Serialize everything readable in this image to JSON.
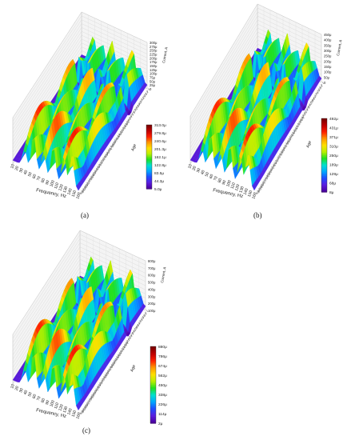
{
  "chart_data": [
    {
      "panel": "(a)",
      "type": "surface3d",
      "xlabel": "Frequency, Hz",
      "ylabel": "Age",
      "zlabel": "Current, A",
      "x_ticks": [
        "10",
        "20",
        "30",
        "40",
        "50",
        "60",
        "70",
        "80",
        "90",
        "100",
        "110",
        "120",
        "130",
        "140",
        "150",
        "160"
      ],
      "y_ticks": [
        "1",
        "3",
        "5",
        "7",
        "9",
        "11",
        "13",
        "15",
        "17",
        "19",
        "21",
        "23",
        "25",
        "27",
        "29",
        "31",
        "33",
        "35",
        "37",
        "39",
        "41",
        "43",
        "45",
        "47",
        "49",
        "51",
        "53",
        "55",
        "57",
        "59",
        "61",
        "63",
        "65",
        "67",
        "69",
        "71",
        "73",
        "75",
        "77",
        "79",
        "81",
        "83",
        "85",
        "87",
        "89",
        "91",
        "93",
        "95",
        "97",
        "99",
        "101",
        "103",
        "105",
        "107",
        "109",
        "111",
        "113",
        "115",
        "117",
        "119",
        "121",
        "123",
        "125",
        "127",
        "129",
        "131",
        "133",
        "135",
        "137",
        "139",
        "141",
        "143",
        "145",
        "147",
        "149",
        "151",
        "153",
        "155",
        "157",
        "159",
        "161",
        "163",
        "165",
        "167",
        "169",
        "171",
        "173",
        "175",
        "177",
        "179",
        "181",
        "183",
        "185",
        "187",
        "189",
        "191",
        "193",
        "195",
        "197",
        "199",
        "201",
        "203",
        "205",
        "207",
        "209",
        "211",
        "213",
        "215",
        "217",
        "219",
        "221",
        "223",
        "225",
        "227",
        "229",
        "231",
        "233",
        "235",
        "237",
        "239",
        "241",
        "243",
        "245",
        "247",
        "249",
        "251",
        "253",
        "255",
        "257",
        "259",
        "261",
        "263",
        "265",
        "267",
        "269",
        "271",
        "273",
        "275",
        "277",
        "279",
        "281",
        "283",
        "285",
        "287",
        "289",
        "291",
        "293",
        "295",
        "297",
        "299",
        "300",
        "310",
        "320",
        "330",
        "340",
        "350"
      ],
      "z_ticks": [
        "300μ",
        "275μ",
        "250μ",
        "225μ",
        "200μ",
        "175μ",
        "150μ",
        "125μ",
        "100μ",
        "75μ",
        "50μ",
        "25μ",
        "0"
      ],
      "colorbar": [
        "313.0μ",
        "279.8μ",
        "240.6μ",
        "201.3μ",
        "162.1μ",
        "122.8μ",
        "83.5μ",
        "44.3μ",
        "5.0μ"
      ],
      "zmax": 313
    },
    {
      "panel": "(b)",
      "type": "surface3d",
      "xlabel": "Frequency, Hz",
      "ylabel": "Age",
      "zlabel": "Current, A",
      "x_ticks": [
        "10",
        "20",
        "30",
        "40",
        "50",
        "60",
        "70",
        "80",
        "90",
        "100",
        "110",
        "120",
        "130",
        "140",
        "150",
        "160"
      ],
      "y_ticks": [
        "1",
        "3",
        "5",
        "7",
        "9",
        "11",
        "13",
        "15",
        "17",
        "19",
        "21",
        "23",
        "25",
        "27",
        "29",
        "31",
        "33",
        "35",
        "37",
        "39",
        "41",
        "43",
        "45",
        "47",
        "49",
        "51",
        "53",
        "55",
        "57",
        "59",
        "61",
        "63",
        "65",
        "67",
        "69",
        "71",
        "73",
        "75",
        "77",
        "79",
        "81",
        "83",
        "85",
        "87",
        "89",
        "91",
        "93",
        "95",
        "97",
        "99",
        "101",
        "103",
        "105",
        "107",
        "109",
        "111",
        "113",
        "115",
        "117",
        "119",
        "121",
        "123",
        "125",
        "127",
        "129",
        "131",
        "133",
        "135",
        "137",
        "139",
        "141",
        "143",
        "145",
        "147",
        "149",
        "151",
        "153",
        "155",
        "157",
        "159",
        "161",
        "163",
        "165",
        "167",
        "169",
        "171",
        "173",
        "175",
        "177",
        "179",
        "181",
        "183",
        "185",
        "187",
        "189",
        "191",
        "193",
        "195",
        "197",
        "199",
        "201",
        "203",
        "205",
        "207",
        "209",
        "211",
        "213",
        "215",
        "217",
        "219",
        "221",
        "223",
        "225",
        "227",
        "229",
        "231",
        "233",
        "235",
        "237",
        "239",
        "241",
        "243",
        "245",
        "247",
        "249",
        "251",
        "253",
        "255",
        "257",
        "259",
        "261",
        "263",
        "265",
        "267",
        "269",
        "271",
        "273",
        "275",
        "277",
        "279",
        "281",
        "283",
        "285",
        "287",
        "289",
        "291",
        "293",
        "295",
        "297",
        "299",
        "300",
        "310",
        "320",
        "330",
        "340",
        "350"
      ],
      "z_ticks": [
        "450μ",
        "400μ",
        "350μ",
        "300μ",
        "250μ",
        "200μ",
        "150μ",
        "100μ",
        "50μ",
        "0"
      ],
      "colorbar": [
        "492μ",
        "431μ",
        "371μ",
        "310μ",
        "250μ",
        "189μ",
        "129μ",
        "68μ",
        "8μ"
      ],
      "zmax": 492
    },
    {
      "panel": "(c)",
      "type": "surface3d",
      "xlabel": "Frequency, Hz",
      "ylabel": "Age",
      "zlabel": "Current, A",
      "x_ticks": [
        "10",
        "20",
        "30",
        "40",
        "50",
        "60",
        "70",
        "80",
        "90",
        "100",
        "110",
        "120",
        "130",
        "140",
        "150",
        "160"
      ],
      "y_ticks": [
        "1",
        "3",
        "5",
        "7",
        "9",
        "11",
        "13",
        "15",
        "17",
        "19",
        "21",
        "23",
        "25",
        "27",
        "29",
        "31",
        "33",
        "35",
        "37",
        "39",
        "41",
        "43",
        "45",
        "47",
        "49",
        "51",
        "53",
        "55",
        "57",
        "59",
        "61",
        "63",
        "65",
        "67",
        "69",
        "71",
        "73",
        "75",
        "77",
        "79",
        "81",
        "83",
        "85",
        "87",
        "89",
        "91",
        "93",
        "95",
        "97",
        "99",
        "101",
        "103",
        "105",
        "107",
        "109",
        "111",
        "113",
        "115",
        "117",
        "119",
        "121",
        "123",
        "125",
        "127",
        "129",
        "131",
        "133",
        "135",
        "137",
        "139",
        "141",
        "143",
        "145",
        "147",
        "149",
        "151",
        "153",
        "155",
        "157",
        "159",
        "161",
        "163",
        "165",
        "167",
        "169",
        "171",
        "173",
        "175",
        "177",
        "179",
        "181",
        "183",
        "185",
        "187",
        "189",
        "191",
        "193",
        "195",
        "197",
        "199",
        "201",
        "203",
        "205",
        "207",
        "209",
        "211",
        "213",
        "215",
        "217",
        "219",
        "221",
        "223",
        "225",
        "227",
        "229",
        "231",
        "233",
        "235",
        "237",
        "239",
        "241",
        "243",
        "245",
        "247",
        "249",
        "251",
        "253",
        "255",
        "257",
        "259",
        "261",
        "263",
        "265",
        "267",
        "269",
        "271",
        "273",
        "275",
        "277",
        "279",
        "281",
        "283",
        "285",
        "287",
        "289",
        "291",
        "293",
        "295",
        "297",
        "299",
        "300",
        "310",
        "320",
        "330",
        "340",
        "350"
      ],
      "z_ticks": [
        "800μ",
        "700μ",
        "600μ",
        "500μ",
        "400μ",
        "300μ",
        "200μ",
        "100μ"
      ],
      "colorbar": [
        "880μ",
        "786μ",
        "674μ",
        "562μ",
        "450μ",
        "338μ",
        "226μ",
        "114μ",
        "2μ"
      ],
      "zmax": 880
    }
  ],
  "colors": {
    "colormap": [
      "#4b00a0",
      "#5a1ee0",
      "#1f4cff",
      "#00a8ff",
      "#00e0d0",
      "#20e020",
      "#b8f000",
      "#ffe000",
      "#ff9800",
      "#ff2000",
      "#c00000",
      "#7a0000"
    ]
  }
}
